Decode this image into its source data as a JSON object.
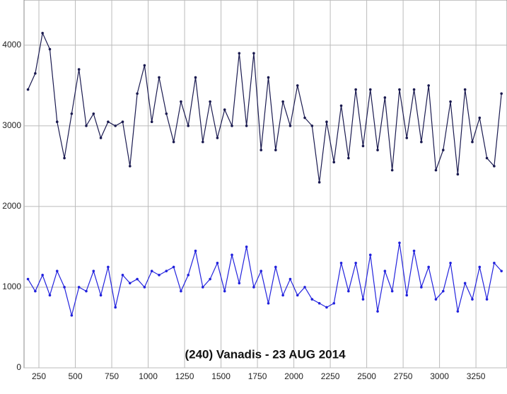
{
  "chart_data": {
    "type": "line",
    "title": "(240) Vanadis - 23 AUG 2014",
    "x": [
      175,
      225,
      275,
      325,
      375,
      425,
      475,
      525,
      575,
      625,
      675,
      725,
      775,
      825,
      875,
      925,
      975,
      1025,
      1075,
      1125,
      1175,
      1225,
      1275,
      1325,
      1375,
      1425,
      1475,
      1525,
      1575,
      1625,
      1675,
      1725,
      1775,
      1825,
      1875,
      1925,
      1975,
      2025,
      2075,
      2125,
      2175,
      2225,
      2275,
      2325,
      2375,
      2425,
      2475,
      2525,
      2575,
      2625,
      2675,
      2725,
      2775,
      2825,
      2875,
      2925,
      2975,
      3025,
      3075,
      3125,
      3175,
      3225,
      3275,
      3325,
      3375,
      3425
    ],
    "series": [
      {
        "color": "#1a1a50",
        "values": [
          3450,
          3650,
          4150,
          3950,
          3050,
          2600,
          3150,
          3700,
          3000,
          3150,
          2850,
          3050,
          3000,
          3050,
          2500,
          3400,
          3750,
          3050,
          3600,
          3150,
          2800,
          3300,
          3000,
          3600,
          2800,
          3300,
          2850,
          3200,
          3000,
          3900,
          3000,
          3900,
          2700,
          3600,
          2700,
          3300,
          3000,
          3500,
          3100,
          3000,
          2300,
          3050,
          2550,
          3250,
          2600,
          3450,
          2750,
          3450,
          2700,
          3350,
          2450,
          3450,
          2850,
          3450,
          2800,
          3500,
          2450,
          2700,
          3300,
          2400,
          3450,
          2800,
          3100,
          2600,
          2500,
          3400
        ]
      },
      {
        "color": "#2222dd",
        "values": [
          1100,
          950,
          1150,
          900,
          1200,
          1000,
          650,
          1000,
          950,
          1200,
          900,
          1250,
          750,
          1150,
          1050,
          1100,
          1000,
          1200,
          1150,
          1200,
          1250,
          950,
          1150,
          1450,
          1000,
          1100,
          1300,
          950,
          1400,
          1050,
          1500,
          1000,
          1200,
          800,
          1250,
          900,
          1100,
          900,
          1000,
          850,
          800,
          750,
          800,
          1300,
          950,
          1300,
          850,
          1400,
          700,
          1200,
          950,
          1550,
          900,
          1450,
          1000,
          1250,
          850,
          950,
          1300,
          700,
          1050,
          850,
          1250,
          850,
          1300,
          1200
        ]
      }
    ],
    "xlim": [
      148,
      3463
    ],
    "ylim": [
      0,
      4560
    ],
    "xticks": [
      250,
      500,
      750,
      1000,
      1250,
      1500,
      1750,
      2000,
      2250,
      2500,
      2750,
      3000,
      3250
    ],
    "yticks": [
      0,
      1000,
      2000,
      3000,
      4000
    ],
    "grid": true
  }
}
